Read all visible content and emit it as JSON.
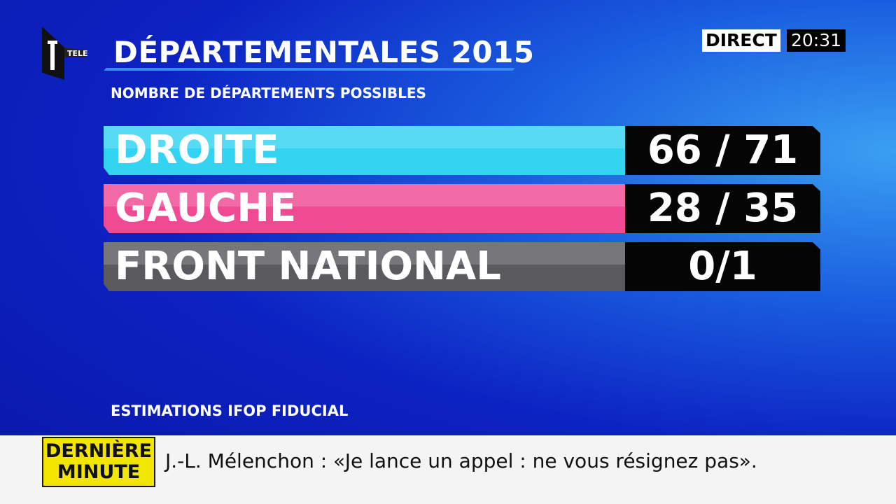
{
  "logo": {
    "text": "TELE"
  },
  "header": {
    "title": "DÉPARTEMENTALES 2015",
    "subtitle": "NOMBRE DE DÉPARTEMENTS POSSIBLES"
  },
  "live": {
    "label": "DIRECT",
    "time": "20:31"
  },
  "rows": [
    {
      "party": "DROITE",
      "result": "66 / 71",
      "color": "#33d3f2"
    },
    {
      "party": "GAUCHE",
      "result": "28 / 35",
      "color": "#f04a92"
    },
    {
      "party": "FRONT NATIONAL",
      "result": "0/1",
      "color": "#5a5a5e"
    }
  ],
  "source": "ESTIMATIONS IFOP FIDUCIAL",
  "ticker": {
    "badge": [
      "DERNIÈRE",
      "MINUTE"
    ],
    "text": "J.-L. Mélenchon : «Je lance un appel : ne vous résignez pas»."
  }
}
